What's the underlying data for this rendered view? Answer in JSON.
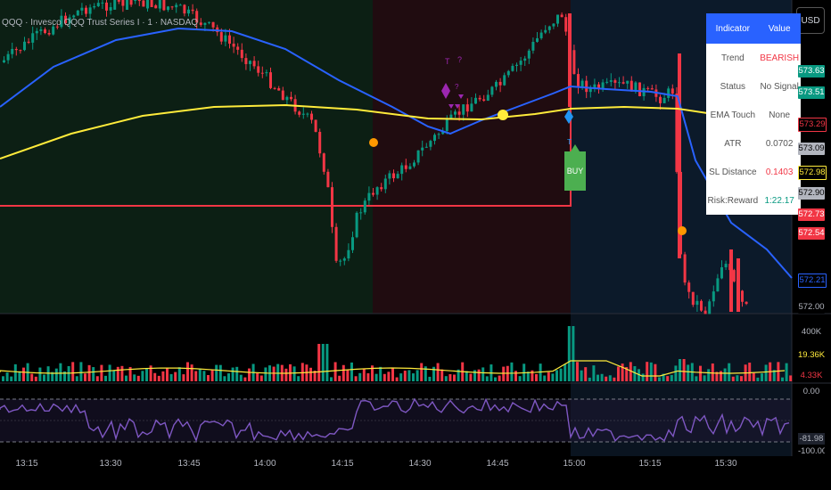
{
  "header": {
    "title": "QQQ · Invesco QQQ Trust Series I · 1 · NASDAQ",
    "currency_button": "USD"
  },
  "info_table": {
    "col_indicator": "Indicator",
    "col_value": "Value",
    "rows": [
      {
        "label": "Trend",
        "value": "BEARISH",
        "color": "#f23645"
      },
      {
        "label": "Status",
        "value": "No Signal",
        "color": "#555555"
      },
      {
        "label": "EMA Touch",
        "value": "None",
        "color": "#555555"
      },
      {
        "label": "ATR",
        "value": "0.0702",
        "color": "#555555"
      },
      {
        "label": "SL Distance",
        "value": "0.1403",
        "color": "#f23645"
      },
      {
        "label": "Risk:Reward",
        "value": "1:22.17",
        "color": "#089981"
      }
    ]
  },
  "price_labels": [
    {
      "text": "573.63",
      "bg": "#089981",
      "fg": "#ffffff"
    },
    {
      "text": "573.51",
      "bg": "#089981",
      "fg": "#ffffff"
    },
    {
      "text": "573.29",
      "bg": "#000000",
      "fg": "#f23645",
      "border": "#f23645"
    },
    {
      "text": "573.09",
      "bg": "#b2b5be",
      "fg": "#000000"
    },
    {
      "text": "572.98",
      "bg": "#000000",
      "fg": "#ffeb3b",
      "border": "#ffeb3b"
    },
    {
      "text": "572.90",
      "bg": "#b2b5be",
      "fg": "#000000"
    },
    {
      "text": "572.73",
      "bg": "#f23645",
      "fg": "#ffffff"
    },
    {
      "text": "572.54",
      "bg": "#f23645",
      "fg": "#ffffff"
    },
    {
      "text": "572.21",
      "bg": "#000000",
      "fg": "#2962ff",
      "border": "#2962ff"
    },
    {
      "text": "572.00",
      "bg": "#000000",
      "fg": "#b2b5be"
    }
  ],
  "volume_labels": [
    {
      "text": "400K",
      "fg": "#b2b5be",
      "bg": "transparent"
    },
    {
      "text": "19.36K",
      "fg": "#ffeb3b",
      "bg": "#000000"
    },
    {
      "text": "4.33K",
      "fg": "#f23645",
      "bg": "#000000"
    }
  ],
  "osc_labels": [
    {
      "text": "0.00",
      "fg": "#b2b5be",
      "bg": "transparent"
    },
    {
      "text": "-81.98",
      "fg": "#b2b5be",
      "bg": "#1e222d"
    },
    {
      "text": "-100.00",
      "fg": "#b2b5be",
      "bg": "transparent"
    }
  ],
  "time_axis": [
    "13:15",
    "13:30",
    "13:45",
    "14:00",
    "14:15",
    "14:30",
    "14:45",
    "15:00",
    "15:15",
    "15:30"
  ],
  "signals": {
    "buy_label": "BUY"
  },
  "colors": {
    "up": "#089981",
    "down": "#f23645",
    "ema_fast": "#2962ff",
    "ema_slow": "#ffeb3b",
    "oscillator": "#7e57c2"
  }
}
